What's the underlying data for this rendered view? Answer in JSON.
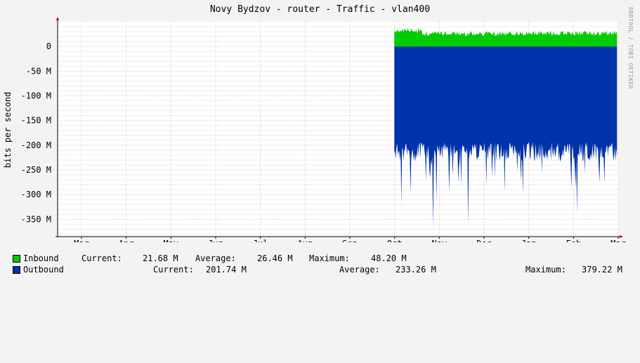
{
  "title": "Novy Bydzov - router - Traffic - vlan400",
  "watermark": "RRDTOOL / TOBI OETIKER",
  "chart_data": {
    "type": "area",
    "title": "Novy Bydzov - router - Traffic - vlan400",
    "ylabel": "bits per second",
    "ylim": [
      -385,
      50
    ],
    "yunit": "M",
    "yticks": [
      {
        "value": 0,
        "label": "0"
      },
      {
        "value": -50,
        "label": "-50 M"
      },
      {
        "value": -100,
        "label": "-100 M"
      },
      {
        "value": -150,
        "label": "-150 M"
      },
      {
        "value": -200,
        "label": "-200 M"
      },
      {
        "value": -250,
        "label": "-250 M"
      },
      {
        "value": -300,
        "label": "-300 M"
      },
      {
        "value": -350,
        "label": "-350 M"
      }
    ],
    "xticks": [
      "Mar",
      "Apr",
      "May",
      "Jun",
      "Jul",
      "Aug",
      "Sep",
      "Oct",
      "Nov",
      "Dec",
      "Jan",
      "Feb",
      "Mar"
    ],
    "grid": true,
    "data_start_fraction": 0.6,
    "series": [
      {
        "name": "Inbound",
        "color": "#00cc00",
        "baseline": 26.46,
        "min": 15,
        "max": 48.2,
        "sign": 1
      },
      {
        "name": "Outbound",
        "color": "#0033aa",
        "baseline": 233.26,
        "min": 165,
        "max": 379.22,
        "sign": -1
      }
    ]
  },
  "legend": {
    "inbound": {
      "name": "Inbound",
      "color": "#00cc00",
      "current_label": "Current:",
      "current": "21.68 M",
      "average_label": "Average:",
      "average": "26.46 M",
      "maximum_label": "Maximum:",
      "maximum": "48.20 M"
    },
    "outbound": {
      "name": "Outbound",
      "color": "#0033aa",
      "current_label": "Current:",
      "current": "201.74 M",
      "average_label": "Average:",
      "average": "233.26 M",
      "maximum_label": "Maximum:",
      "maximum": "379.22 M"
    }
  }
}
